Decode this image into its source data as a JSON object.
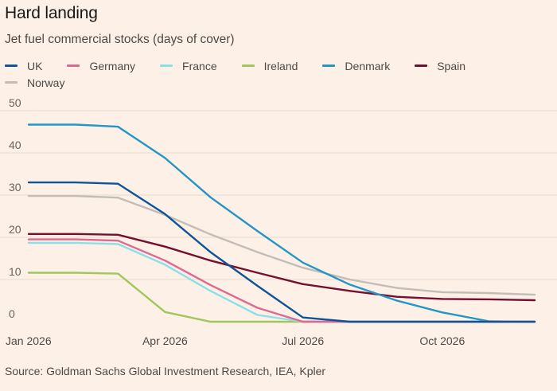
{
  "header": {
    "title": "Hard landing",
    "subtitle": "Jet fuel commercial stocks (days of cover)"
  },
  "footer": {
    "source": "Source: Goldman Sachs Global Investment Research, IEA, Kpler"
  },
  "chart_data": {
    "type": "line",
    "title": "Hard landing",
    "subtitle": "Jet fuel commercial stocks (days of cover)",
    "xlabel": "",
    "ylabel": "",
    "x": [
      "2026-01-01",
      "2026-02-01",
      "2026-03-01",
      "2026-04-01",
      "2026-05-01",
      "2026-06-01",
      "2026-07-01",
      "2026-08-01",
      "2026-09-01",
      "2026-10-01",
      "2026-11-01",
      "2026-12-01"
    ],
    "x_ticks": [
      {
        "value": "2026-01-01",
        "label": "Jan 2026"
      },
      {
        "value": "2026-04-01",
        "label": "Apr 2026"
      },
      {
        "value": "2026-07-01",
        "label": "Jul 2026"
      },
      {
        "value": "2026-10-01",
        "label": "Oct 2026"
      }
    ],
    "y_ticks": [
      0,
      10,
      20,
      30,
      40,
      50
    ],
    "ylim": [
      0,
      50
    ],
    "grid": true,
    "legend": "top",
    "series": [
      {
        "name": "UK",
        "color": "#0f5499",
        "values": [
          33,
          33,
          32.7,
          25.5,
          16.5,
          8.5,
          1,
          0,
          0,
          0,
          0,
          0
        ]
      },
      {
        "name": "Germany",
        "color": "#e0678f",
        "values": [
          19.5,
          19.5,
          19.2,
          14.5,
          8.7,
          3.3,
          0,
          0,
          0,
          0,
          0,
          0
        ]
      },
      {
        "name": "France",
        "color": "#8ae0e6",
        "values": [
          18.7,
          18.7,
          18.4,
          13.5,
          7.3,
          1.6,
          0,
          0,
          0,
          0,
          0,
          0
        ]
      },
      {
        "name": "Ireland",
        "color": "#a1c65a",
        "values": [
          11.6,
          11.6,
          11.4,
          2.3,
          0,
          0,
          0,
          0,
          0,
          0,
          0,
          0
        ]
      },
      {
        "name": "Denmark",
        "color": "#2495c6",
        "values": [
          46.7,
          46.7,
          46.2,
          38.8,
          29.5,
          21.5,
          14,
          8.8,
          5,
          2.2,
          0.1,
          0
        ]
      },
      {
        "name": "Spain",
        "color": "#760f2f",
        "values": [
          20.8,
          20.8,
          20.6,
          17.8,
          14.5,
          11.6,
          8.9,
          7.3,
          5.9,
          5.4,
          5.3,
          5.1
        ]
      },
      {
        "name": "Norway",
        "color": "#c3bcb7",
        "values": [
          29.8,
          29.8,
          29.4,
          25.3,
          20.7,
          16.5,
          12.8,
          10,
          8,
          7,
          6.8,
          6.4
        ]
      }
    ]
  }
}
